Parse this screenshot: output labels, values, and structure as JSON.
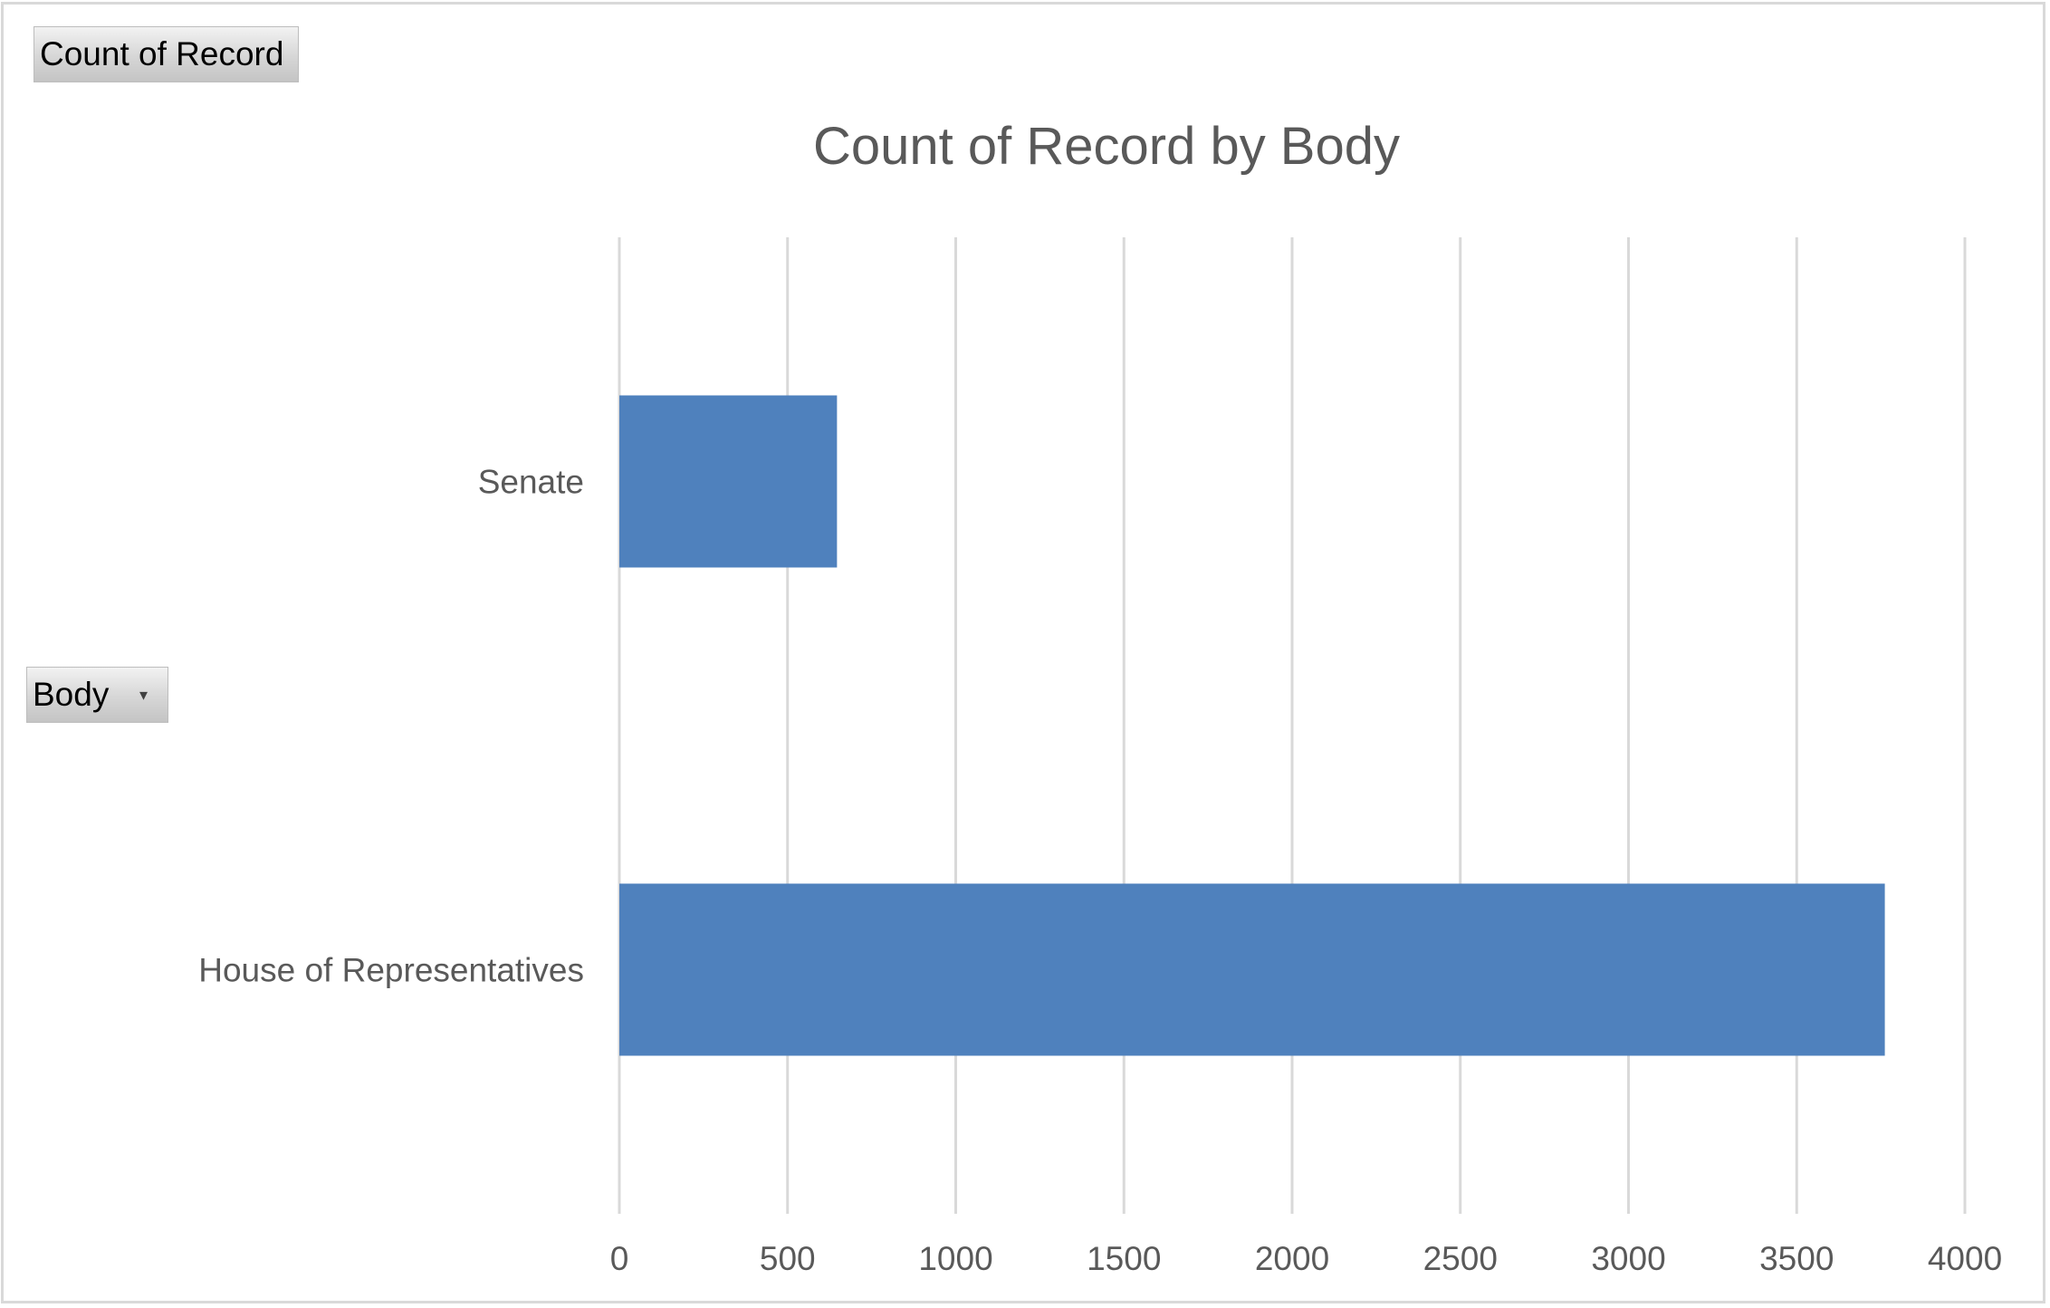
{
  "pivot_fields": {
    "values_button": "Count of Record",
    "axis_button": "Body"
  },
  "chart_data": {
    "type": "bar",
    "orientation": "horizontal",
    "title": "Count of Record by Body",
    "categories": [
      "Senate",
      "House of Representatives"
    ],
    "values": [
      647,
      3762
    ],
    "xlim": [
      0,
      4000
    ],
    "xticks": [
      0,
      500,
      1000,
      1500,
      2000,
      2500,
      3000,
      3500,
      4000
    ],
    "grid": "vertical",
    "bar_color": "#4f81bd",
    "grid_color": "#d9d9d9",
    "legend": "none"
  }
}
